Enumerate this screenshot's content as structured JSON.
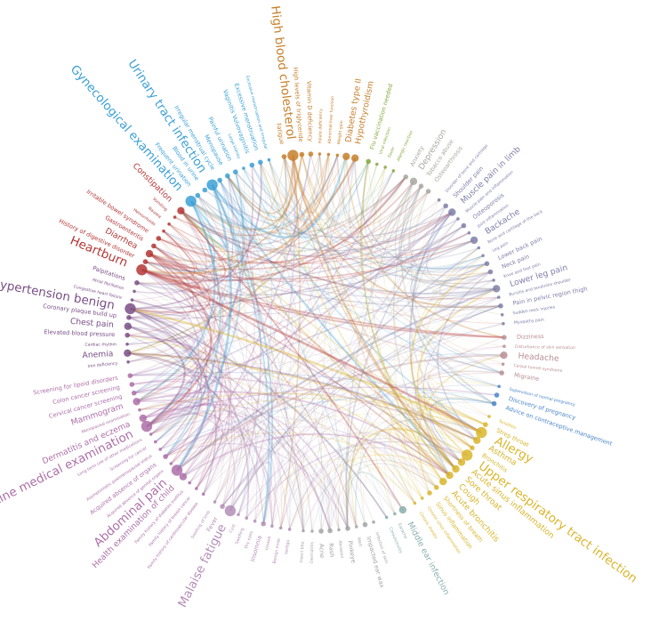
{
  "diagram": {
    "groups": [
      {
        "id": "blood",
        "color": "#c77f2a",
        "nodes": [
          {
            "label": "Fatigue",
            "size": 1
          },
          {
            "label": "High blood cholesterol",
            "size": 3
          },
          {
            "label": "High levels of triglyceride",
            "size": 1
          },
          {
            "label": "Vitamin D deficiency",
            "size": 1
          },
          {
            "label": "Folate deficiency",
            "size": 0
          },
          {
            "label": "Abnormal liver function",
            "size": 0
          },
          {
            "label": "Weight gain",
            "size": 0
          },
          {
            "label": "Diabetes type II",
            "size": 2
          },
          {
            "label": "Hypothyroidism",
            "size": 2
          }
        ]
      },
      {
        "id": "flu",
        "color": "#84a83b",
        "nodes": [
          {
            "label": "Flu vaccination needed",
            "size": 1
          },
          {
            "label": "Viral infection",
            "size": 0
          },
          {
            "label": "Fever",
            "size": 0
          },
          {
            "label": "Allergic reaction",
            "size": 0
          }
        ]
      },
      {
        "id": "mental",
        "color": "#a8a8a0",
        "nodes": [
          {
            "label": "Anxiety",
            "size": 1
          },
          {
            "label": "Depression",
            "size": 2
          },
          {
            "label": "Tobacco abuse",
            "size": 1
          },
          {
            "label": "Osteoarthrosis",
            "size": 1
          }
        ]
      },
      {
        "id": "msk",
        "color": "#7f7fa8",
        "nodes": [
          {
            "label": "Disorder of bone and cartilage",
            "size": 0
          },
          {
            "label": "Shoulder pain",
            "size": 1
          },
          {
            "label": "Muscle pain in limb",
            "size": 2
          },
          {
            "label": "Muscle pain and inflammation",
            "size": 0
          },
          {
            "label": "Osteoporosis",
            "size": 1
          },
          {
            "label": "Joint inflammation",
            "size": 0
          },
          {
            "label": "Backache",
            "size": 2
          },
          {
            "label": "Bone and cartilage of the back",
            "size": 0
          },
          {
            "label": "Leg pain",
            "size": 0
          },
          {
            "label": "Lower back pain",
            "size": 1
          },
          {
            "label": "Neck pain",
            "size": 1
          },
          {
            "label": "Knee and foot pain",
            "size": 0
          },
          {
            "label": "Lower leg pain",
            "size": 2
          },
          {
            "label": "Bursitis and tendinitis shoulder",
            "size": 0
          },
          {
            "label": "Pain in pelvic region thigh",
            "size": 1
          },
          {
            "label": "Sudden neck injuries",
            "size": 0
          },
          {
            "label": "Myopathy pain",
            "size": 0
          }
        ]
      },
      {
        "id": "neuro",
        "color": "#b98f96",
        "nodes": [
          {
            "label": "Dizziness",
            "size": 1
          },
          {
            "label": "Disturbance of skin sensation",
            "size": 0
          },
          {
            "label": "Headache",
            "size": 2
          },
          {
            "label": "Carpal tunnel syndrome",
            "size": 0
          },
          {
            "label": "Migraine",
            "size": 1
          }
        ]
      },
      {
        "id": "preg",
        "color": "#4a86c8",
        "nodes": [
          {
            "label": "Supervision of normal pregnancy",
            "size": 0
          },
          {
            "label": "Discovery of pregnancy",
            "size": 1
          },
          {
            "label": "Advice on contraceptive management",
            "size": 1
          }
        ]
      },
      {
        "id": "resp",
        "color": "#d9b52a",
        "nodes": [
          {
            "label": "Tonsillitis",
            "size": 0
          },
          {
            "label": "Strep throat",
            "size": 1
          },
          {
            "label": "Allergy",
            "size": 3
          },
          {
            "label": "Asthma",
            "size": 2
          },
          {
            "label": "Bronchitis",
            "size": 1
          },
          {
            "label": "Upper respiratory tract infection",
            "size": 3
          },
          {
            "label": "Acute sinus inflammation",
            "size": 2
          },
          {
            "label": "Sore throat",
            "size": 2
          },
          {
            "label": "Cough",
            "size": 2
          },
          {
            "label": "Acute bronchitis",
            "size": 2
          },
          {
            "label": "Shortness of breath",
            "size": 1
          },
          {
            "label": "Sinus inflammation",
            "size": 1
          },
          {
            "label": "Chronic sinus inflammation",
            "size": 0
          },
          {
            "label": "Chronic rhinitis",
            "size": 0
          }
        ]
      },
      {
        "id": "ear",
        "color": "#8aaeac",
        "nodes": [
          {
            "label": "Middle ear infection",
            "size": 2
          },
          {
            "label": "Earache",
            "size": 0
          },
          {
            "label": "Conjunctivitis",
            "size": 0
          }
        ]
      },
      {
        "id": "skin",
        "color": "#a3a3a3",
        "nodes": [
          {
            "label": "Infection of skin",
            "size": 0
          },
          {
            "label": "Impacted ear wax",
            "size": 1
          },
          {
            "label": "Wart",
            "size": 0
          },
          {
            "label": "Pinkeye",
            "size": 1
          },
          {
            "label": "Abrasion",
            "size": 0
          },
          {
            "label": "Rash",
            "size": 1
          },
          {
            "label": "Acne",
            "size": 1
          },
          {
            "label": "Dermatitis",
            "size": 0
          },
          {
            "label": "Insect bite",
            "size": 0
          }
        ]
      },
      {
        "id": "general",
        "color": "#b38eb6",
        "nodes": [
          {
            "label": "Vertigo",
            "size": 0
          },
          {
            "label": "Benign mole",
            "size": 0
          },
          {
            "label": "Unwell",
            "size": 0
          },
          {
            "label": "Insomnia",
            "size": 1
          },
          {
            "label": "Dry eyes",
            "size": 0
          },
          {
            "label": "Swelling",
            "size": 0
          },
          {
            "label": "Cyst",
            "size": 0
          },
          {
            "label": "Malaise fatigue",
            "size": 3
          },
          {
            "label": "Fever",
            "size": 1
          },
          {
            "label": "Swelling of limb",
            "size": 0
          }
        ]
      },
      {
        "id": "exam",
        "color": "#ad6fa8",
        "nodes": [
          {
            "label": "Family history of cardiovascular disease",
            "size": 0
          },
          {
            "label": "Family history of breast cancer",
            "size": 0
          },
          {
            "label": "Family history of diabetes mellitus",
            "size": 0
          },
          {
            "label": "Health examination of child",
            "size": 2
          },
          {
            "label": "Abdominal pain",
            "size": 3
          },
          {
            "label": "Acquired absence of genital organs",
            "size": 0
          },
          {
            "label": "Acquired absence of organs",
            "size": 1
          },
          {
            "label": "Asymptomatic postmenopausal status",
            "size": 0
          },
          {
            "label": "Screening for cancer",
            "size": 0
          },
          {
            "label": "Long term use of other medications",
            "size": 0
          },
          {
            "label": "Routine medical examination",
            "size": 3
          },
          {
            "label": "Dermatitis and eczema",
            "size": 2
          },
          {
            "label": "Menopausal examination",
            "size": 0
          },
          {
            "label": "Mammogram",
            "size": 2
          },
          {
            "label": "Cervical cancer screening",
            "size": 1
          },
          {
            "label": "Colon cancer screening",
            "size": 1
          },
          {
            "label": "Screening for lipoid disorders",
            "size": 1
          }
        ]
      },
      {
        "id": "cardio",
        "color": "#7a4f86",
        "nodes": [
          {
            "label": "Iron deficiency",
            "size": 0
          },
          {
            "label": "Anemia",
            "size": 2
          },
          {
            "label": "Cardiac rhythm",
            "size": 0
          },
          {
            "label": "Elevated blood pressure",
            "size": 1
          },
          {
            "label": "Chest pain",
            "size": 2
          },
          {
            "label": "Coronary plaque build up",
            "size": 1
          },
          {
            "label": "Hypertension benign",
            "size": 3
          },
          {
            "label": "Congestive heart failure",
            "size": 0
          },
          {
            "label": "Atrial fibrillation",
            "size": 0
          },
          {
            "label": "Palpitations",
            "size": 1
          }
        ]
      },
      {
        "id": "gi",
        "color": "#b43636",
        "nodes": [
          {
            "label": "Heartburn",
            "size": 3
          },
          {
            "label": "History of digestive disorder",
            "size": 1
          },
          {
            "label": "Diarrhea",
            "size": 2
          },
          {
            "label": "Gastroenteritis",
            "size": 1
          },
          {
            "label": "Irritable bowel syndrome",
            "size": 1
          },
          {
            "label": "Hemorrhoids",
            "size": 0
          },
          {
            "label": "Nausea",
            "size": 0
          },
          {
            "label": "Vomiting",
            "size": 0
          },
          {
            "label": "Constipation",
            "size": 2
          }
        ]
      },
      {
        "id": "uro",
        "color": "#3ba0d6",
        "nodes": [
          {
            "label": "Gynecological examination",
            "size": 3
          },
          {
            "label": "Frequent urination",
            "size": 1
          },
          {
            "label": "Blood in urine",
            "size": 1
          },
          {
            "label": "Urinary tract infection",
            "size": 3
          },
          {
            "label": "Irregular menstrual cycle",
            "size": 1
          },
          {
            "label": "Menopause",
            "size": 1
          },
          {
            "label": "Painful urination",
            "size": 1
          },
          {
            "label": "Large kidney",
            "size": 0
          },
          {
            "label": "Vaginitis Vulvovaginitis",
            "size": 1
          },
          {
            "label": "Excessive menstruation",
            "size": 1
          },
          {
            "label": "Excessive menstruation and irregular",
            "size": 0
          }
        ]
      }
    ]
  }
}
